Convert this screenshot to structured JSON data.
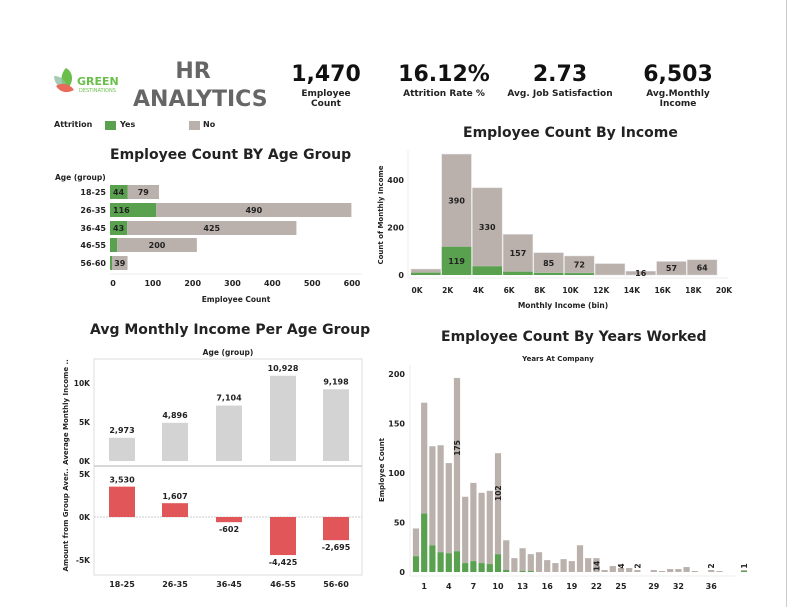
{
  "header": {
    "logo_text": "GREEN",
    "logo_sub": "DESTINATIONS",
    "title_line1": "HR",
    "title_line2": "ANALYTICS"
  },
  "kpis": [
    {
      "value": "1,470",
      "label": "Employee Count"
    },
    {
      "value": "16.12%",
      "label": "Attrition Rate %"
    },
    {
      "value": "2.73",
      "label": "Avg. Job Satisfaction"
    },
    {
      "value": "6,503",
      "label": "Avg.Monthly Income"
    }
  ],
  "legend": {
    "title": "Attrition",
    "items": [
      {
        "label": "Yes",
        "color": "#59a14f"
      },
      {
        "label": "No",
        "color": "#bab0ac"
      }
    ]
  },
  "chart_data": [
    {
      "type": "bar",
      "orientation": "horizontal",
      "stacked": true,
      "title": "Employee Count BY Age Group",
      "ylabel": "Age (group)",
      "xlabel": "Employee Count",
      "xlim": [
        0,
        600
      ],
      "xticks": [
        "0",
        "100",
        "200",
        "300",
        "400",
        "500",
        "600"
      ],
      "categories": [
        "18-25",
        "26-35",
        "36-45",
        "46-55",
        "56-60"
      ],
      "series": [
        {
          "name": "Yes",
          "values": [
            44,
            116,
            43,
            18,
            5
          ],
          "labels": [
            "44",
            "116",
            "43",
            "",
            ""
          ]
        },
        {
          "name": "No",
          "values": [
            79,
            490,
            425,
            200,
            39
          ],
          "labels": [
            "79",
            "490",
            "425",
            "200",
            "39"
          ]
        }
      ]
    },
    {
      "type": "bar",
      "stacked": true,
      "title": "Employee Count By Income",
      "xlabel": "Monthly Income (bin)",
      "ylabel": "Count of Monthly Income",
      "ylim": [
        0,
        530
      ],
      "yticks": [
        "0",
        "200",
        "400"
      ],
      "xticks": [
        "0K",
        "2K",
        "4K",
        "6K",
        "8K",
        "10K",
        "12K",
        "14K",
        "16K",
        "18K",
        "20K"
      ],
      "bins": [
        0,
        2,
        4,
        6,
        8,
        10,
        12,
        14,
        16,
        18
      ],
      "series": [
        {
          "name": "Yes",
          "values": [
            10,
            119,
            37,
            14,
            9,
            8,
            0,
            0,
            0,
            0
          ],
          "labels": [
            "",
            "119",
            "",
            "",
            "",
            "",
            "",
            "",
            "",
            ""
          ]
        },
        {
          "name": "No",
          "values": [
            15,
            390,
            330,
            157,
            85,
            72,
            48,
            16,
            57,
            64
          ],
          "labels": [
            "",
            "390",
            "330",
            "157",
            "85",
            "72",
            "",
            "16",
            "57",
            "64"
          ]
        }
      ]
    },
    {
      "type": "bar",
      "title": "Avg Monthly  Income Per  Age Group",
      "xlabel": "Age (group)",
      "categories": [
        "18-25",
        "26-35",
        "36-45",
        "46-55",
        "56-60"
      ],
      "panels": [
        {
          "ylabel": "Average Monthly Income ..",
          "ylim": [
            0,
            12000
          ],
          "yticks": [
            "0K",
            "5K",
            "10K"
          ],
          "values": [
            2973,
            4896,
            7104,
            10928,
            9198
          ],
          "labels": [
            "2,973",
            "4,896",
            "7,104",
            "10,928",
            "9,198"
          ],
          "color": "#d3d3d3"
        },
        {
          "ylabel": "Amount from  Group Aver..",
          "ylim": [
            -6000,
            5500
          ],
          "yticks": [
            "-5K",
            "0K",
            "5K"
          ],
          "values": [
            3530,
            1607,
            -602,
            -4425,
            -2695
          ],
          "labels": [
            "3,530",
            "1,607",
            "-602",
            "-4,425",
            "-2,695"
          ],
          "color": "#e15759"
        }
      ]
    },
    {
      "type": "bar",
      "stacked": true,
      "title": "Employee Count By Years Worked",
      "xlabel": "Years At Company",
      "ylabel": "Employee Count",
      "ylim": [
        0,
        200
      ],
      "yticks": [
        "0",
        "50",
        "100",
        "150",
        "200"
      ],
      "xticks": [
        "1",
        "4",
        "7",
        "10",
        "13",
        "16",
        "19",
        "22",
        "25",
        "29",
        "32",
        "36"
      ],
      "x": [
        0,
        1,
        2,
        3,
        4,
        5,
        6,
        7,
        8,
        9,
        10,
        11,
        12,
        13,
        14,
        15,
        16,
        17,
        18,
        19,
        20,
        21,
        22,
        23,
        24,
        25,
        26,
        27,
        29,
        30,
        31,
        32,
        33,
        34,
        36,
        37,
        40
      ],
      "series": [
        {
          "name": "Yes",
          "values": [
            16,
            59,
            27,
            20,
            19,
            21,
            9,
            11,
            9,
            8,
            18,
            2,
            0,
            1,
            1,
            0,
            0,
            0,
            0,
            0,
            0,
            0,
            0,
            0,
            0,
            0,
            0,
            0,
            0,
            0,
            0,
            0,
            0,
            0,
            0,
            0,
            1
          ]
        },
        {
          "name": "No",
          "values": [
            28,
            112,
            100,
            108,
            91,
            175,
            67,
            79,
            71,
            74,
            102,
            30,
            14,
            23,
            17,
            20,
            12,
            9,
            13,
            11,
            27,
            14,
            14,
            2,
            6,
            4,
            4,
            2,
            2,
            1,
            3,
            3,
            5,
            1,
            2,
            1,
            1
          ],
          "labels": {
            "5": "175",
            "10": "102",
            "22": "14",
            "25": "4",
            "27": "2",
            "36": "2",
            "40": "1"
          }
        }
      ]
    }
  ]
}
